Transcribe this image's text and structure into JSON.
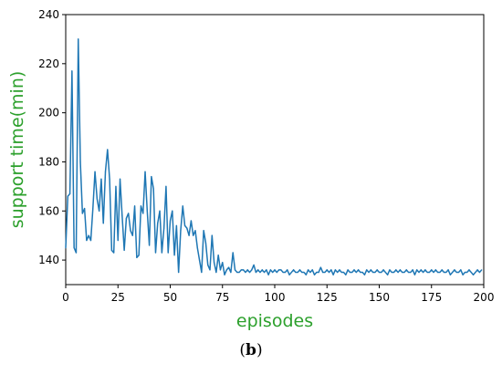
{
  "caption": {
    "open": "(",
    "letter": "b",
    "close": ")"
  },
  "colors": {
    "series": "#1f77b4",
    "axis_label": "#2ca02c",
    "axes": "#000000",
    "background": "#ffffff"
  },
  "chart_data": {
    "type": "line",
    "title": "",
    "xlabel": "episodes",
    "ylabel": "support time(min)",
    "xlim": [
      0,
      200
    ],
    "ylim": [
      130,
      240
    ],
    "xticks": [
      0,
      25,
      50,
      75,
      100,
      125,
      150,
      175,
      200
    ],
    "yticks": [
      140,
      160,
      180,
      200,
      220,
      240
    ],
    "grid": false,
    "legend": "none",
    "series": [
      {
        "values": [
          145,
          166,
          167,
          217,
          145,
          143,
          230,
          180,
          159,
          161,
          148,
          150,
          148,
          161,
          176,
          165,
          160,
          173,
          155,
          176,
          185,
          173,
          144,
          143,
          170,
          148,
          173,
          158,
          144,
          157,
          159,
          152,
          150,
          162,
          141,
          142,
          162,
          159,
          176,
          160,
          146,
          174,
          169,
          143,
          155,
          160,
          143,
          153,
          170,
          143,
          156,
          160,
          142,
          154,
          135,
          152,
          162,
          154,
          153,
          150,
          156,
          150,
          152,
          145,
          140,
          135,
          152,
          147,
          138,
          136,
          150,
          139,
          135,
          142,
          136,
          139,
          134,
          136,
          137,
          135,
          143,
          136,
          135,
          135,
          136,
          136,
          135,
          136,
          135,
          136,
          138,
          135,
          136,
          135,
          136,
          135,
          136,
          134,
          136,
          135,
          136,
          135,
          136,
          136,
          135,
          135,
          136,
          134,
          135,
          136,
          135,
          135,
          136,
          135,
          135,
          134,
          136,
          135,
          136,
          134,
          135,
          135,
          137,
          135,
          135,
          136,
          135,
          136,
          134,
          136,
          135,
          136,
          135,
          135,
          134,
          136,
          135,
          135,
          136,
          135,
          136,
          135,
          135,
          134,
          136,
          135,
          136,
          135,
          135,
          136,
          135,
          135,
          136,
          135,
          134,
          136,
          135,
          135,
          136,
          135,
          136,
          135,
          135,
          136,
          135,
          135,
          136,
          134,
          136,
          135,
          136,
          135,
          136,
          135,
          135,
          136,
          135,
          136,
          135,
          135,
          136,
          135,
          135,
          136,
          134,
          135,
          136,
          135,
          135,
          136,
          134,
          135,
          135,
          136,
          135,
          134,
          135,
          136,
          135,
          136
        ]
      }
    ]
  }
}
